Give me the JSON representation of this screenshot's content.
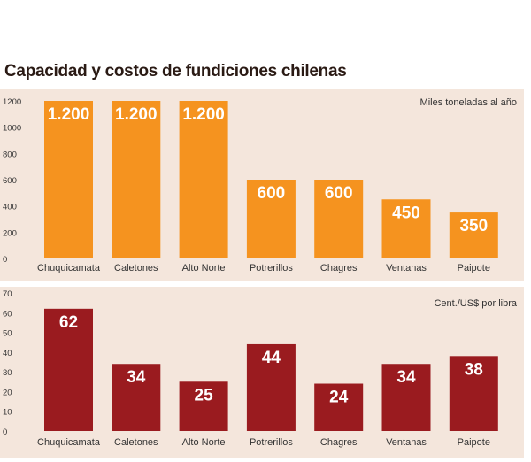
{
  "title": "Capacidad y costos de fundiciones chilenas",
  "colors": {
    "panel_background": "#f4e6dc",
    "capacity_bar": "#f5931f",
    "cost_bar": "#9a1b1f",
    "value_label": "#ffffff",
    "axis_text": "#333333"
  },
  "chart_data": [
    {
      "type": "bar",
      "title": "",
      "unit_label": "Miles toneladas al año",
      "categories": [
        "Chuquicamata",
        "Caletones",
        "Alto Norte",
        "Potrerillos",
        "Chagres",
        "Ventanas",
        "Paipote"
      ],
      "values": [
        1200,
        1200,
        1200,
        600,
        600,
        450,
        350
      ],
      "value_labels": [
        "1.200",
        "1.200",
        "1.200",
        "600",
        "600",
        "450",
        "350"
      ],
      "y_ticks": [
        0,
        200,
        400,
        600,
        800,
        1000,
        1200
      ],
      "ylim": [
        0,
        1200
      ],
      "grid": false
    },
    {
      "type": "bar",
      "title": "",
      "unit_label": "Cent./US$ por libra",
      "categories": [
        "Chuquicamata",
        "Caletones",
        "Alto Norte",
        "Potrerillos",
        "Chagres",
        "Ventanas",
        "Paipote"
      ],
      "values": [
        62,
        34,
        25,
        44,
        24,
        34,
        38
      ],
      "value_labels": [
        "62",
        "34",
        "25",
        "44",
        "24",
        "34",
        "38"
      ],
      "y_ticks": [
        0,
        10,
        20,
        30,
        40,
        50,
        60,
        70
      ],
      "ylim": [
        0,
        70
      ],
      "grid": false
    }
  ]
}
